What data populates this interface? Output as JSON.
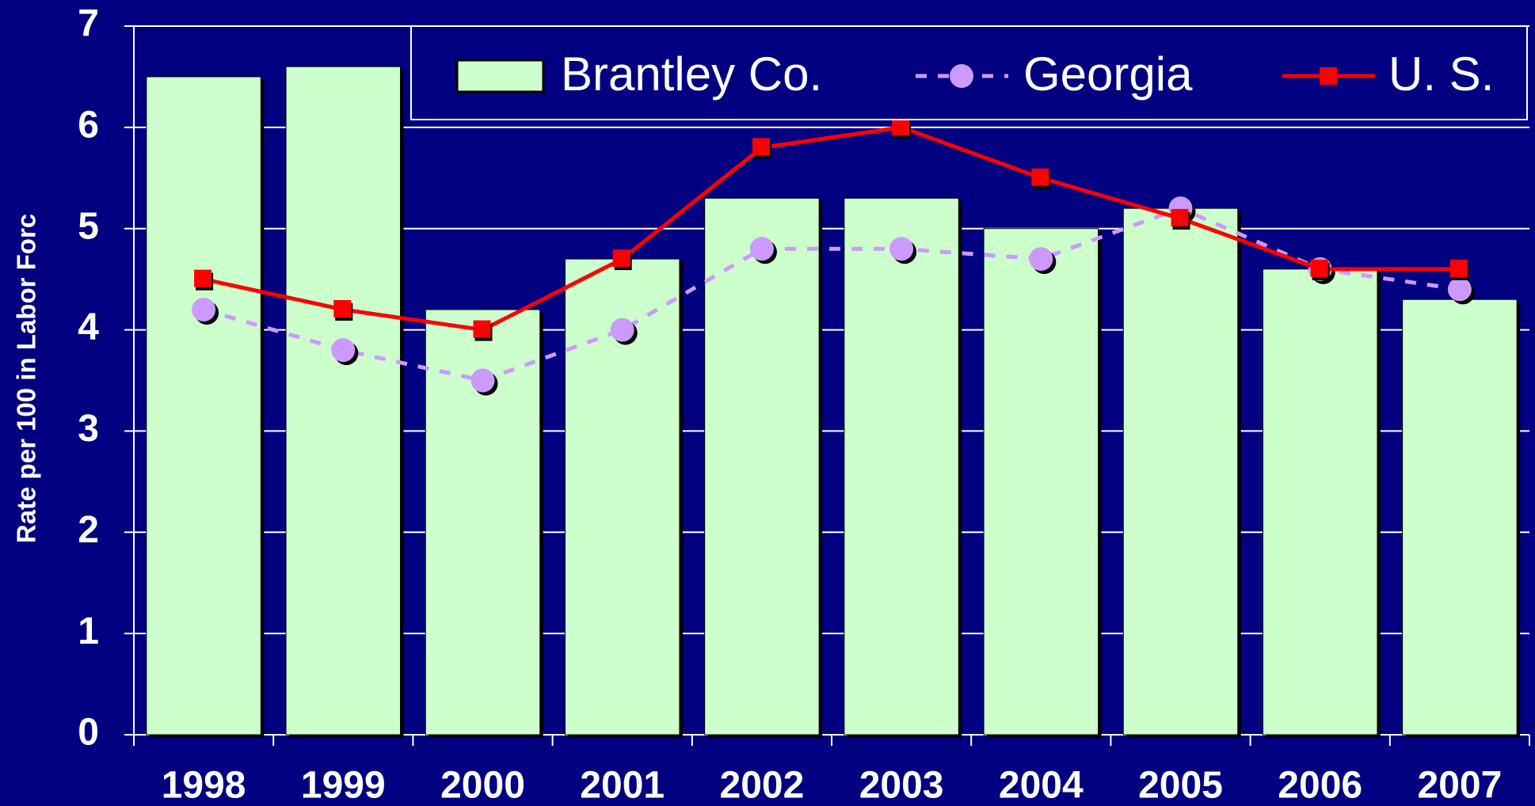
{
  "chart_data": {
    "type": "bar",
    "y_label": "Rate per 100 in Labor Forc",
    "categories": [
      "1998",
      "1999",
      "2000",
      "2001",
      "2002",
      "2003",
      "2004",
      "2005",
      "2006",
      "2007"
    ],
    "series": [
      {
        "name": "Brantley Co.",
        "color": "#ccffcc",
        "style": "bar",
        "values": [
          6.5,
          6.6,
          4.2,
          4.7,
          5.3,
          5.3,
          5.0,
          5.2,
          4.6,
          4.3
        ]
      },
      {
        "name": "Georgia",
        "color": "#cc99ff",
        "style": "dashed-line",
        "marker": "circle",
        "values": [
          4.2,
          3.8,
          3.5,
          4.0,
          4.8,
          4.8,
          4.7,
          5.2,
          4.6,
          4.4
        ]
      },
      {
        "name": "U. S.",
        "color": "#ff0000",
        "style": "line",
        "marker": "square",
        "values": [
          4.5,
          4.2,
          4.0,
          4.7,
          5.8,
          6.0,
          5.5,
          5.1,
          4.6,
          4.6
        ]
      }
    ],
    "ylim": [
      0,
      7
    ],
    "yticks": [
      0,
      1,
      2,
      3,
      4,
      5,
      6,
      7
    ],
    "grid": true,
    "legend": "top"
  }
}
